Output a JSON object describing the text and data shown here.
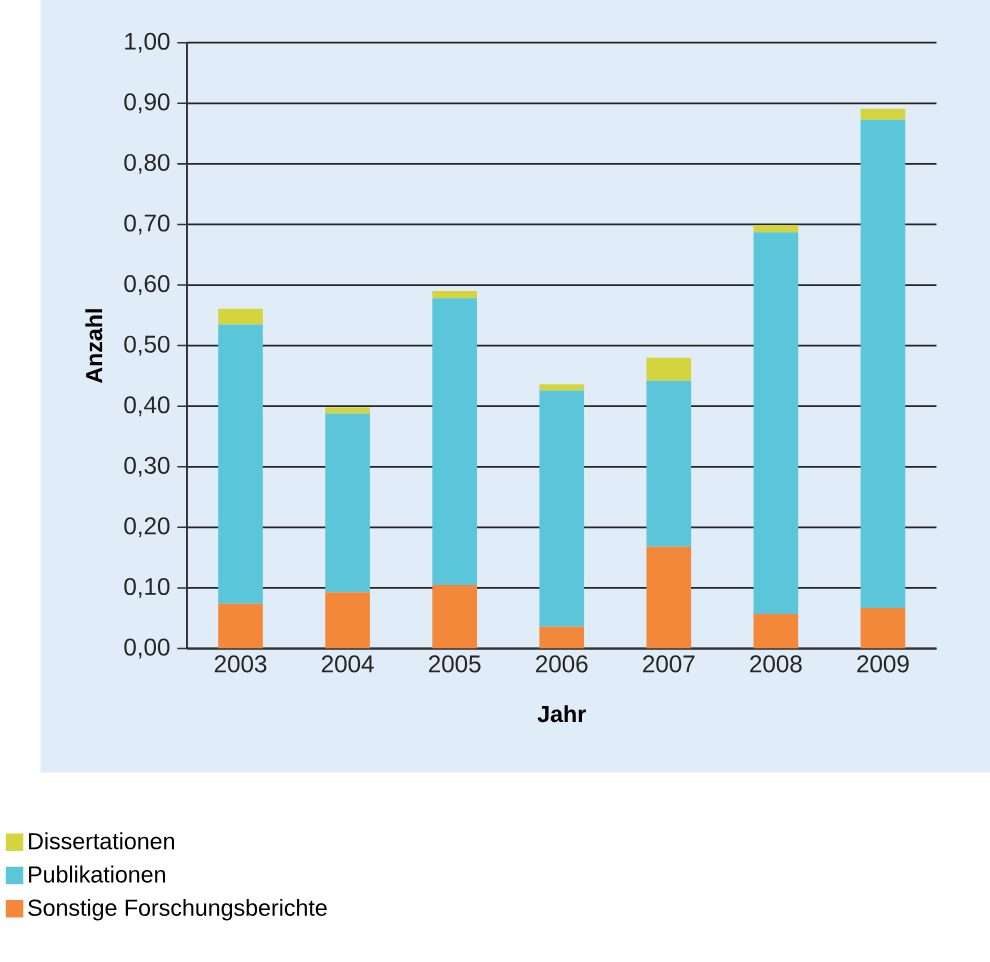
{
  "chart_data": {
    "type": "bar",
    "stacked": true,
    "xlabel": "Jahr",
    "ylabel": "Anzahl",
    "categories": [
      "2003",
      "2004",
      "2005",
      "2006",
      "2007",
      "2008",
      "2009"
    ],
    "series": [
      {
        "name": "Sonstige Forschungsberichte",
        "color": "#f4883a",
        "values": [
          0.074,
          0.093,
          0.105,
          0.036,
          0.168,
          0.057,
          0.067
        ]
      },
      {
        "name": "Publikationen",
        "color": "#5bc5da",
        "values": [
          0.461,
          0.295,
          0.473,
          0.39,
          0.274,
          0.63,
          0.806
        ]
      },
      {
        "name": "Dissertationen",
        "color": "#d3d43e",
        "values": [
          0.026,
          0.01,
          0.012,
          0.01,
          0.038,
          0.012,
          0.018
        ]
      }
    ],
    "ylim": [
      0,
      1
    ],
    "yticks": [
      {
        "value": 0,
        "label": "0,00"
      },
      {
        "value": 0.1,
        "label": "0,10"
      },
      {
        "value": 0.2,
        "label": "0,20"
      },
      {
        "value": 0.3,
        "label": "0,30"
      },
      {
        "value": 0.4,
        "label": "0,40"
      },
      {
        "value": 0.5,
        "label": "0,50"
      },
      {
        "value": 0.6,
        "label": "0,60"
      },
      {
        "value": 0.7,
        "label": "0,70"
      },
      {
        "value": 0.8,
        "label": "0,80"
      },
      {
        "value": 0.9,
        "label": "0,90"
      },
      {
        "value": 1,
        "label": "1,00"
      }
    ],
    "grid": "y",
    "legend": "bottom left"
  }
}
